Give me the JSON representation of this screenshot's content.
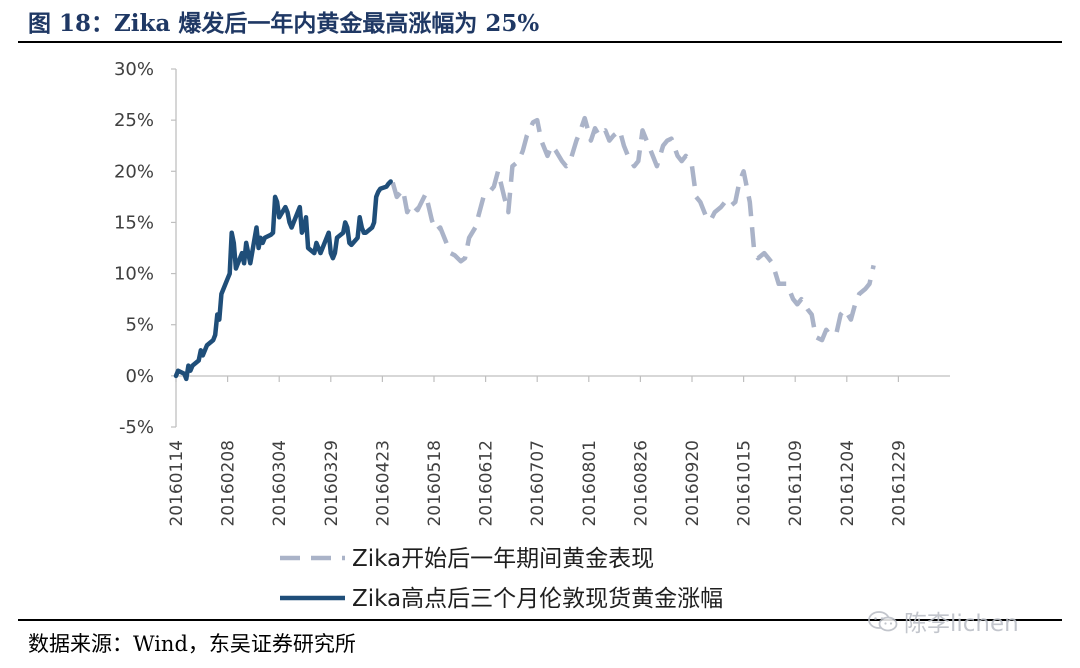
{
  "header": {
    "title": "图 18：Zika 爆发后一年内黄金最高涨幅为 25%"
  },
  "footer": {
    "source": "数据来源：Wind，东吴证券研究所",
    "watermark": "陈李lichen"
  },
  "colors": {
    "primary": "#1f4e79",
    "secondary": "#aab3c8",
    "title": "#1f3864"
  },
  "chart_data": {
    "type": "line",
    "title": "",
    "xlabel": "",
    "ylabel": "",
    "ylim": [
      -5,
      30
    ],
    "yticks": [
      "-5%",
      "0%",
      "5%",
      "10%",
      "15%",
      "20%",
      "25%",
      "30%"
    ],
    "xticks": [
      "20160114",
      "20160208",
      "20160304",
      "20160329",
      "20160423",
      "20160518",
      "20160612",
      "20160707",
      "20160801",
      "20160826",
      "20160920",
      "20161015",
      "20161109",
      "20161204",
      "20161229"
    ],
    "grid": false,
    "legend_position": "bottom",
    "series": [
      {
        "name": "Zika开始后一年期间黄金表现",
        "style": "dashed",
        "color": "#aab3c8",
        "points": [
          [
            "20160428",
            18.9
          ],
          [
            "20160430",
            17.5
          ],
          [
            "20160503",
            18.2
          ],
          [
            "20160505",
            16.0
          ],
          [
            "20160507",
            16.8
          ],
          [
            "20160510",
            16.2
          ],
          [
            "20160512",
            17.0
          ],
          [
            "20160514",
            17.8
          ],
          [
            "20160517",
            15.2
          ],
          [
            "20160519",
            14.2
          ],
          [
            "20160521",
            14.5
          ],
          [
            "20160524",
            13.0
          ],
          [
            "20160526",
            12.0
          ],
          [
            "20160528",
            11.8
          ],
          [
            "20160531",
            11.2
          ],
          [
            "20160602",
            11.5
          ],
          [
            "20160604",
            13.5
          ],
          [
            "20160607",
            14.5
          ],
          [
            "20160609",
            16.0
          ],
          [
            "20160611",
            17.5
          ],
          [
            "20160614",
            18.0
          ],
          [
            "20160616",
            18.5
          ],
          [
            "20160618",
            20.0
          ],
          [
            "20160621",
            17.5
          ],
          [
            "20160623",
            16.0
          ],
          [
            "20160625",
            20.5
          ],
          [
            "20160628",
            21.0
          ],
          [
            "20160630",
            22.0
          ],
          [
            "20160702",
            23.5
          ],
          [
            "20160705",
            24.8
          ],
          [
            "20160707",
            25.0
          ],
          [
            "20160709",
            23.0
          ],
          [
            "20160712",
            21.5
          ],
          [
            "20160714",
            22.5
          ],
          [
            "20160716",
            22.0
          ],
          [
            "20160719",
            21.0
          ],
          [
            "20160721",
            20.5
          ],
          [
            "20160723",
            21.0
          ],
          [
            "20160726",
            23.0
          ],
          [
            "20160728",
            24.0
          ],
          [
            "20160730",
            25.2
          ],
          [
            "20160802",
            23.0
          ],
          [
            "20160804",
            24.2
          ],
          [
            "20160806",
            23.5
          ],
          [
            "20160809",
            24.0
          ],
          [
            "20160811",
            23.0
          ],
          [
            "20160813",
            23.5
          ],
          [
            "20160816",
            24.0
          ],
          [
            "20160818",
            22.5
          ],
          [
            "20160820",
            21.5
          ],
          [
            "20160823",
            20.5
          ],
          [
            "20160825",
            21.0
          ],
          [
            "20160827",
            24.0
          ],
          [
            "20160830",
            22.5
          ],
          [
            "20160901",
            21.5
          ],
          [
            "20160903",
            20.5
          ],
          [
            "20160906",
            22.5
          ],
          [
            "20160908",
            23.0
          ],
          [
            "20160910",
            23.2
          ],
          [
            "20160913",
            21.5
          ],
          [
            "20160915",
            21.0
          ],
          [
            "20160917",
            21.5
          ],
          [
            "20160920",
            20.5
          ],
          [
            "20160922",
            17.5
          ],
          [
            "20160924",
            17.0
          ],
          [
            "20160927",
            15.5
          ],
          [
            "20160929",
            15.2
          ],
          [
            "20161001",
            16.0
          ],
          [
            "20161004",
            16.5
          ],
          [
            "20161006",
            17.0
          ],
          [
            "20161008",
            16.5
          ],
          [
            "20161011",
            17.0
          ],
          [
            "20161013",
            19.0
          ],
          [
            "20161015",
            20.0
          ],
          [
            "20161018",
            17.0
          ],
          [
            "20161020",
            12.5
          ],
          [
            "20161022",
            11.5
          ],
          [
            "20161025",
            12.0
          ],
          [
            "20161027",
            11.5
          ],
          [
            "20161029",
            11.0
          ],
          [
            "20161101",
            9.0
          ],
          [
            "20161103",
            9.0
          ],
          [
            "20161105",
            9.0
          ],
          [
            "20161108",
            7.5
          ],
          [
            "20161110",
            7.0
          ],
          [
            "20161112",
            7.5
          ],
          [
            "20161115",
            6.5
          ],
          [
            "20161117",
            6.0
          ],
          [
            "20161119",
            3.8
          ],
          [
            "20161122",
            3.5
          ],
          [
            "20161124",
            4.5
          ],
          [
            "20161126",
            4.0
          ],
          [
            "20161129",
            4.2
          ],
          [
            "20161201",
            6.0
          ],
          [
            "20161203",
            6.5
          ],
          [
            "20161206",
            5.5
          ],
          [
            "20161208",
            7.0
          ],
          [
            "20161210",
            8.0
          ],
          [
            "20161213",
            8.5
          ],
          [
            "20161215",
            9.0
          ],
          [
            "20161217",
            10.8
          ]
        ]
      },
      {
        "name": "Zika高点后三个月伦敦现货黄金涨幅",
        "style": "solid",
        "color": "#1f4e79",
        "points": [
          [
            "20160114",
            0.0
          ],
          [
            "20160115",
            0.5
          ],
          [
            "20160118",
            0.2
          ],
          [
            "20160119",
            -0.3
          ],
          [
            "20160120",
            1.0
          ],
          [
            "20160121",
            0.5
          ],
          [
            "20160122",
            1.0
          ],
          [
            "20160125",
            1.5
          ],
          [
            "20160126",
            2.5
          ],
          [
            "20160127",
            2.0
          ],
          [
            "20160128",
            2.5
          ],
          [
            "20160129",
            3.0
          ],
          [
            "20160201",
            3.5
          ],
          [
            "20160202",
            4.0
          ],
          [
            "20160203",
            6.0
          ],
          [
            "20160204",
            5.5
          ],
          [
            "20160205",
            8.0
          ],
          [
            "20160208",
            9.5
          ],
          [
            "20160209",
            10.0
          ],
          [
            "20160210",
            14.0
          ],
          [
            "20160211",
            13.0
          ],
          [
            "20160212",
            10.5
          ],
          [
            "20160215",
            12.0
          ],
          [
            "20160216",
            11.0
          ],
          [
            "20160217",
            13.0
          ],
          [
            "20160218",
            12.0
          ],
          [
            "20160219",
            11.0
          ],
          [
            "20160222",
            14.5
          ],
          [
            "20160223",
            12.5
          ],
          [
            "20160224",
            13.5
          ],
          [
            "20160225",
            13.0
          ],
          [
            "20160226",
            13.5
          ],
          [
            "20160229",
            13.8
          ],
          [
            "20160301",
            14.0
          ],
          [
            "20160302",
            17.5
          ],
          [
            "20160303",
            17.0
          ],
          [
            "20160304",
            15.5
          ],
          [
            "20160307",
            16.5
          ],
          [
            "20160308",
            16.0
          ],
          [
            "20160309",
            15.0
          ],
          [
            "20160310",
            14.5
          ],
          [
            "20160311",
            15.0
          ],
          [
            "20160314",
            16.5
          ],
          [
            "20160315",
            14.0
          ],
          [
            "20160316",
            14.5
          ],
          [
            "20160317",
            15.5
          ],
          [
            "20160318",
            12.5
          ],
          [
            "20160321",
            12.0
          ],
          [
            "20160322",
            13.0
          ],
          [
            "20160323",
            12.5
          ],
          [
            "20160324",
            12.0
          ],
          [
            "20160328",
            14.0
          ],
          [
            "20160329",
            12.0
          ],
          [
            "20160330",
            11.5
          ],
          [
            "20160331",
            12.0
          ],
          [
            "20160401",
            13.5
          ],
          [
            "20160404",
            14.0
          ],
          [
            "20160405",
            15.0
          ],
          [
            "20160406",
            14.5
          ],
          [
            "20160407",
            13.0
          ],
          [
            "20160408",
            12.8
          ],
          [
            "20160411",
            13.5
          ],
          [
            "20160412",
            15.5
          ],
          [
            "20160413",
            14.5
          ],
          [
            "20160414",
            14.0
          ],
          [
            "20160415",
            14.0
          ],
          [
            "20160418",
            14.5
          ],
          [
            "20160419",
            15.0
          ],
          [
            "20160420",
            17.5
          ],
          [
            "20160421",
            18.0
          ],
          [
            "20160422",
            18.3
          ],
          [
            "20160425",
            18.5
          ],
          [
            "20160426",
            18.8
          ],
          [
            "20160427",
            19.0
          ]
        ]
      }
    ]
  }
}
